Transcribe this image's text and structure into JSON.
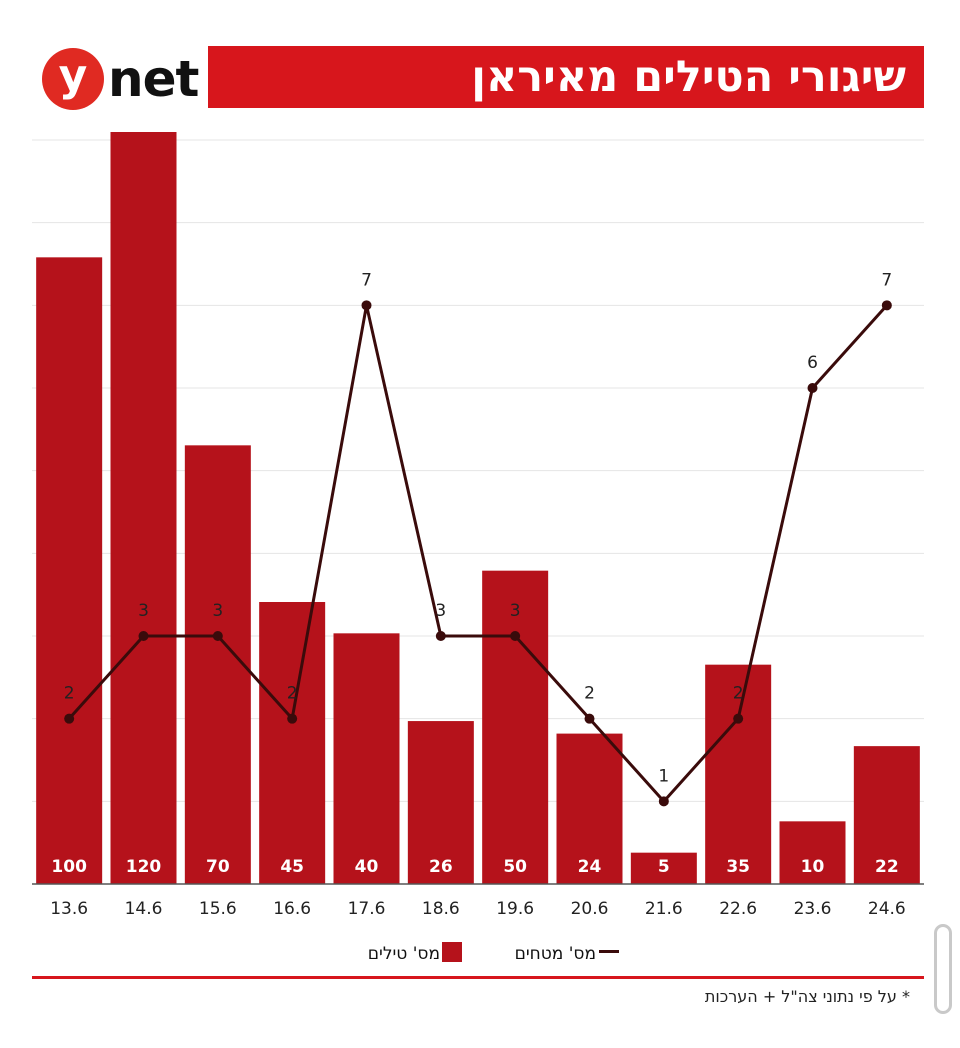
{
  "brand": {
    "logo_circle": "y",
    "logo_text": "net"
  },
  "header": {
    "title": "שיגורי הטילים מאיראן"
  },
  "chart_data": {
    "type": "bar",
    "categories": [
      "13.6",
      "14.6",
      "15.6",
      "16.6",
      "17.6",
      "18.6",
      "19.6",
      "20.6",
      "21.6",
      "22.6",
      "23.6",
      "24.6"
    ],
    "series": [
      {
        "name": "מס' טילים",
        "type": "bar",
        "values": [
          100,
          120,
          70,
          45,
          40,
          26,
          50,
          24,
          5,
          35,
          10,
          22
        ],
        "color": "#b5121b"
      },
      {
        "name": "מס' מטחים",
        "type": "line",
        "values": [
          2,
          3,
          3,
          2,
          7,
          3,
          3,
          2,
          1,
          2,
          6,
          7
        ],
        "color": "#3a0b0b"
      }
    ],
    "bar_ylim": [
      0,
      120
    ],
    "line_ylim": [
      0,
      9
    ],
    "grid": true,
    "legend_position": "bottom"
  },
  "legend": {
    "bars_label": "מס' טילים",
    "line_label": "מס' מטחים"
  },
  "footnote": "* על פי נתוני צה\"ל + הערכות"
}
